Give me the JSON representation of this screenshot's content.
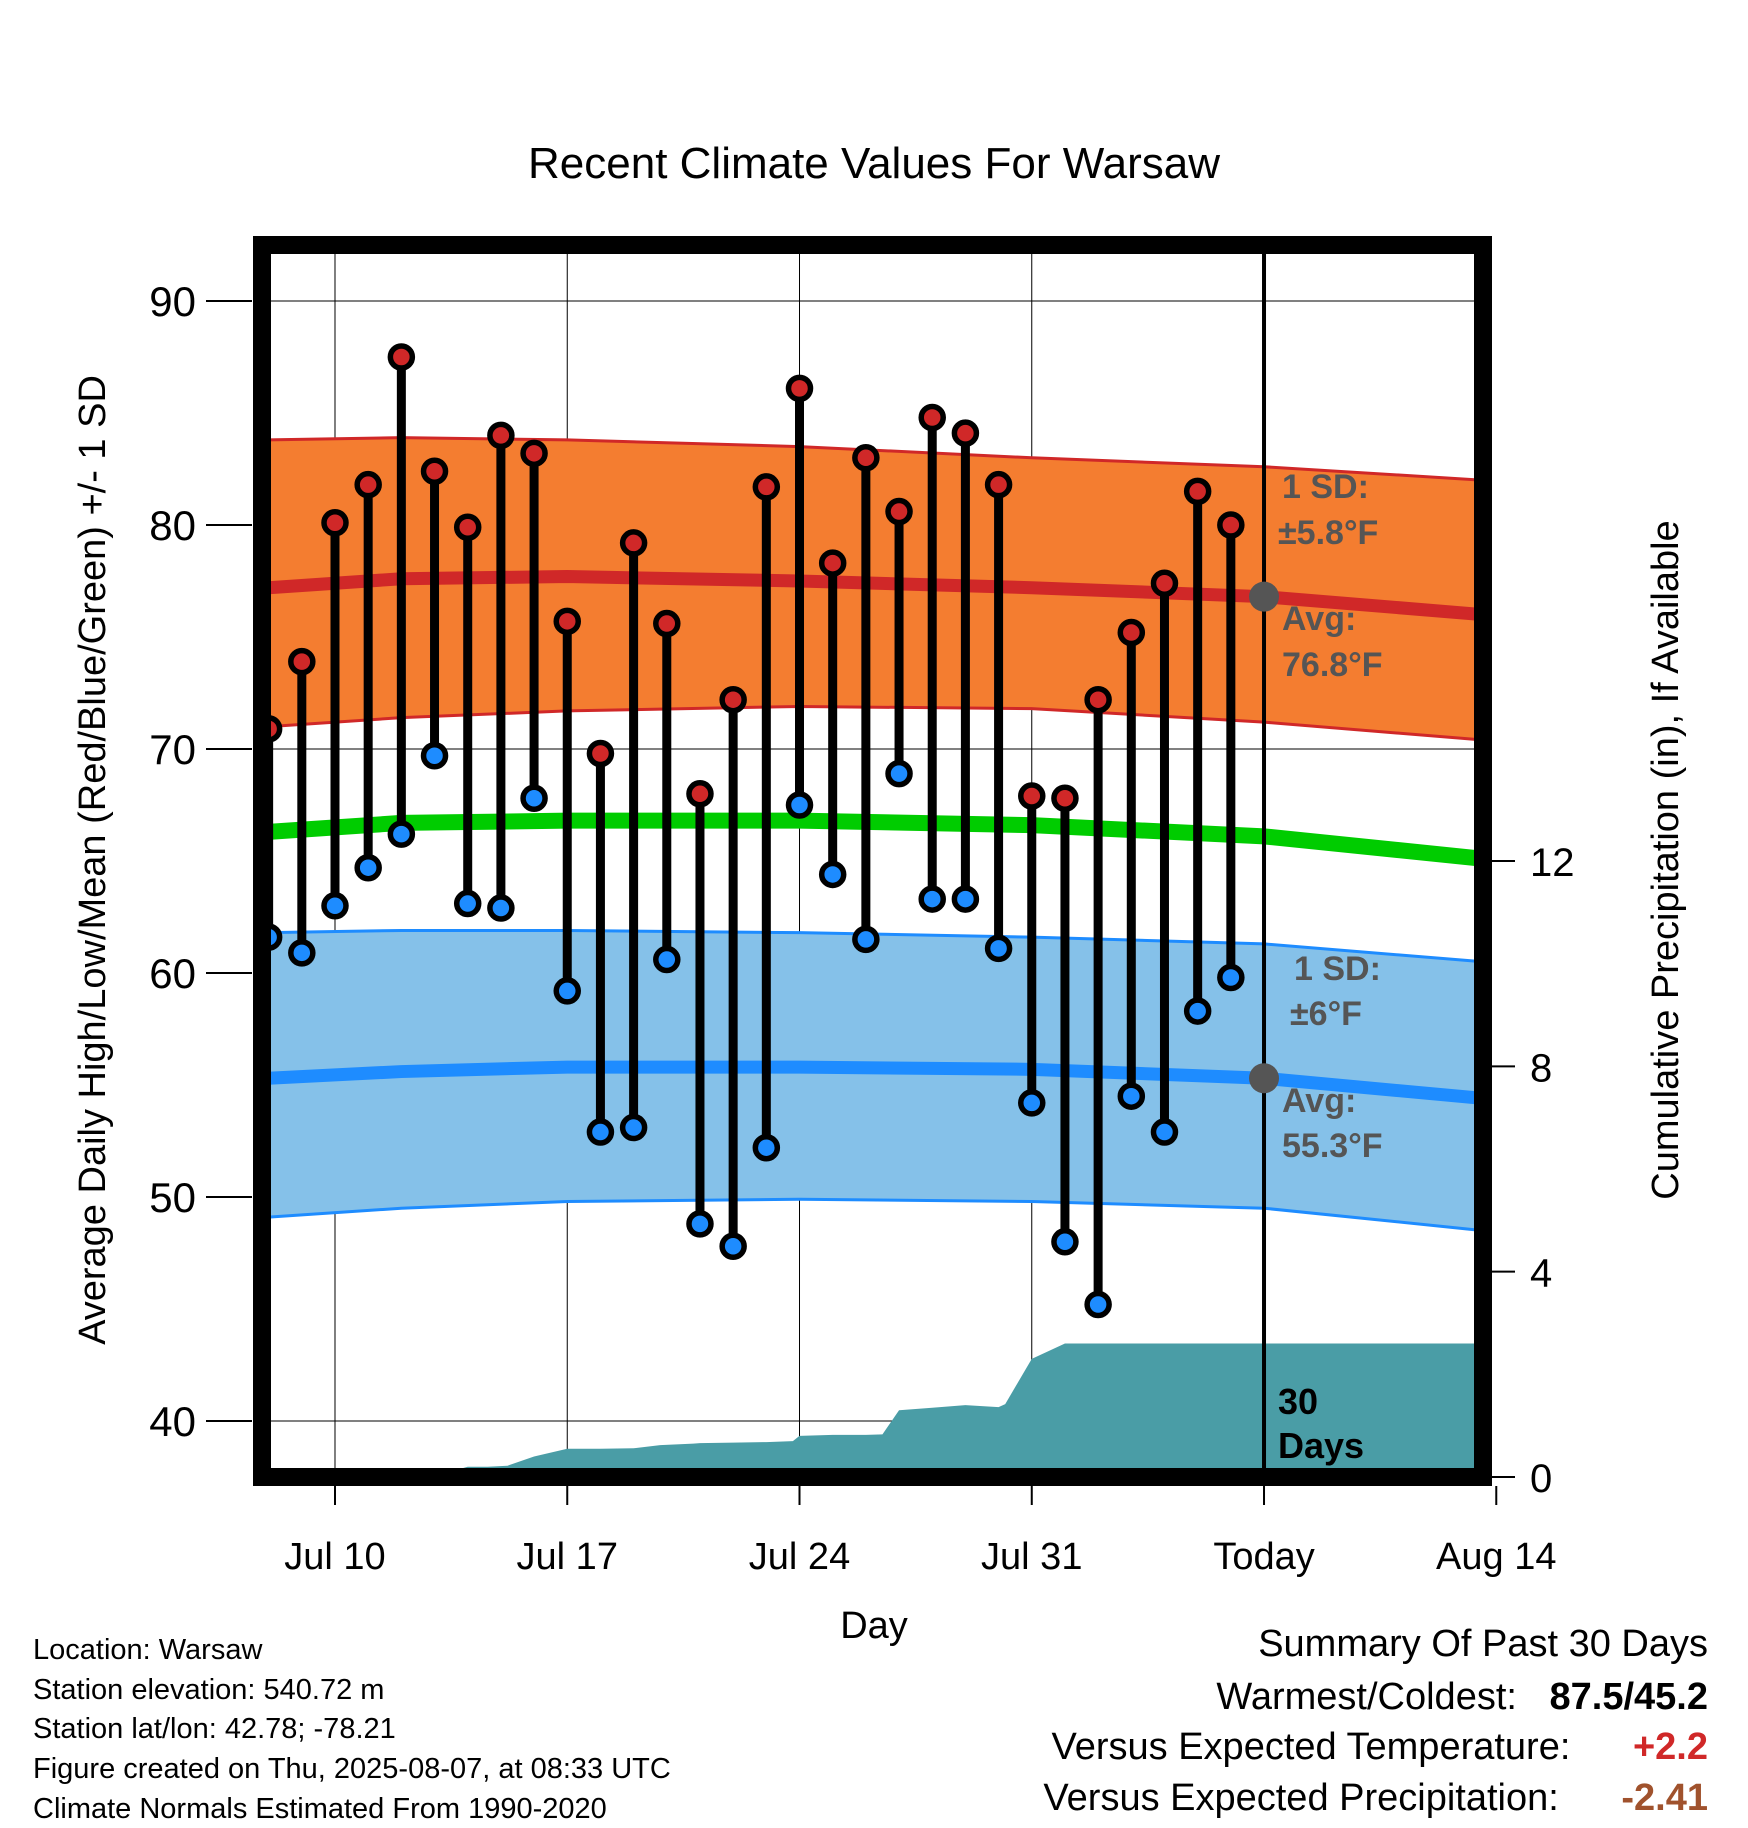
{
  "chart_data": {
    "type": "line",
    "title": "Recent Climate Values For Warsaw",
    "xlabel": "Day",
    "ylabel": "Average Daily High/Low/Mean (Red/Blue/Green) +/- 1 SD",
    "y2label": "Cumulative Precipitation (in), If Available",
    "ylim": [
      37.5,
      92.5
    ],
    "y2lim": [
      0,
      24
    ],
    "xlim": [
      7.8,
      44.6
    ],
    "x_tick_labels": [
      {
        "x": 10,
        "label": "Jul 10"
      },
      {
        "x": 17,
        "label": "Jul 17"
      },
      {
        "x": 24,
        "label": "Jul 24"
      },
      {
        "x": 31,
        "label": "Jul 31"
      },
      {
        "x": 38,
        "label": "Today"
      },
      {
        "x": 45,
        "label": "Aug 14"
      }
    ],
    "y_ticks": [
      40,
      50,
      60,
      70,
      80,
      90
    ],
    "y2_ticks": [
      0,
      4,
      8,
      12
    ],
    "today_x": 38,
    "period_label": "30 Days",
    "colors": {
      "high_band": "#f47d30",
      "high_line": "#d02828",
      "low_band": "#85c1e9",
      "low_line": "#1e8cff",
      "mean_line": "#00cc00",
      "precip": "#4a9da6",
      "high_marker": "#d02828",
      "low_marker": "#1e8cff",
      "today_marker": "#555555",
      "annotation": "#555555",
      "temp_anomaly": "#d02828",
      "precip_anomaly": "#a0522d"
    },
    "normals": {
      "x": [
        8,
        12,
        17,
        24,
        31,
        38,
        44.6
      ],
      "high_avg": [
        77.2,
        77.6,
        77.7,
        77.5,
        77.2,
        76.8,
        76.0
      ],
      "high_upper": [
        83.8,
        83.9,
        83.8,
        83.5,
        83.0,
        82.6,
        82.0
      ],
      "high_lower": [
        71.0,
        71.4,
        71.7,
        71.9,
        71.8,
        71.2,
        70.4
      ],
      "mean": [
        66.3,
        66.7,
        66.8,
        66.8,
        66.6,
        66.1,
        65.1
      ],
      "low_avg": [
        55.3,
        55.6,
        55.8,
        55.8,
        55.7,
        55.3,
        54.4
      ],
      "low_upper": [
        61.8,
        61.9,
        61.9,
        61.8,
        61.6,
        61.3,
        60.5
      ],
      "low_lower": [
        49.1,
        49.5,
        49.8,
        49.9,
        49.8,
        49.5,
        48.5
      ]
    },
    "series": [
      {
        "name": "High",
        "x": [
          8,
          9,
          10,
          11,
          12,
          13,
          14,
          15,
          16,
          17,
          18,
          19,
          20,
          21,
          22,
          23,
          24,
          25,
          26,
          27,
          28,
          29,
          30,
          31,
          32,
          33,
          34,
          35,
          36,
          37
        ],
        "values": [
          70.9,
          73.9,
          80.1,
          81.8,
          87.5,
          82.4,
          79.9,
          84.0,
          83.2,
          75.7,
          69.8,
          79.2,
          75.6,
          68.0,
          72.2,
          81.7,
          86.1,
          78.3,
          83.0,
          80.6,
          84.8,
          84.1,
          81.8,
          67.9,
          67.8,
          72.2,
          75.2,
          77.4,
          81.5,
          80.0
        ]
      },
      {
        "name": "Low",
        "x": [
          8,
          9,
          10,
          11,
          12,
          13,
          14,
          15,
          16,
          17,
          18,
          19,
          20,
          21,
          22,
          23,
          24,
          25,
          26,
          27,
          28,
          29,
          30,
          31,
          32,
          33,
          34,
          35,
          36,
          37
        ],
        "values": [
          61.6,
          60.9,
          63.0,
          64.7,
          66.2,
          69.7,
          63.1,
          62.9,
          67.8,
          59.2,
          52.9,
          53.1,
          60.6,
          48.8,
          47.8,
          52.2,
          67.5,
          64.4,
          61.5,
          68.9,
          63.3,
          63.3,
          61.1,
          54.2,
          48.0,
          45.2,
          54.5,
          52.9,
          58.3,
          59.8
        ]
      },
      {
        "name": "Precipitation",
        "x": [
          8,
          10.5,
          11,
          12.5,
          13,
          14,
          14.6,
          15.2,
          16,
          17,
          18,
          19,
          19.8,
          20.8,
          21,
          22,
          23,
          23.8,
          24,
          25,
          26,
          26.5,
          27,
          28,
          29,
          30,
          30.2,
          31,
          32,
          38,
          44.6
        ],
        "values": [
          0,
          0,
          0,
          0,
          0.02,
          0.2,
          0.2,
          0.22,
          0.4,
          0.55,
          0.55,
          0.56,
          0.62,
          0.65,
          0.66,
          0.67,
          0.68,
          0.7,
          0.8,
          0.82,
          0.82,
          0.83,
          1.3,
          1.35,
          1.4,
          1.36,
          1.42,
          2.3,
          2.6,
          2.6,
          2.6
        ]
      }
    ],
    "annotations": {
      "high_sd_label": "1 SD:",
      "high_sd_value": "±5.8°F",
      "high_avg_label": "Avg:",
      "high_avg_value": "76.8°F",
      "low_sd_label": "1 SD:",
      "low_sd_value": "±6°F",
      "low_avg_label": "Avg:",
      "low_avg_value": "55.3°F"
    }
  },
  "info": {
    "location": "Location: Warsaw",
    "elevation": "Station elevation: 540.72 m",
    "latlon": "Station lat/lon: 42.78; -78.21",
    "created": "Figure created on Thu, 2025-08-07, at 08:33 UTC",
    "normals": "Climate Normals Estimated From 1990-2020"
  },
  "summary": {
    "heading": "Summary Of Past 30 Days",
    "warmest_label": "Warmest/Coldest:",
    "warmest_value": "87.5/45.2",
    "temp_label": "Versus Expected Temperature:",
    "temp_value": "+2.2",
    "precip_label": "Versus Expected Precipitation:",
    "precip_value": "-2.41"
  }
}
